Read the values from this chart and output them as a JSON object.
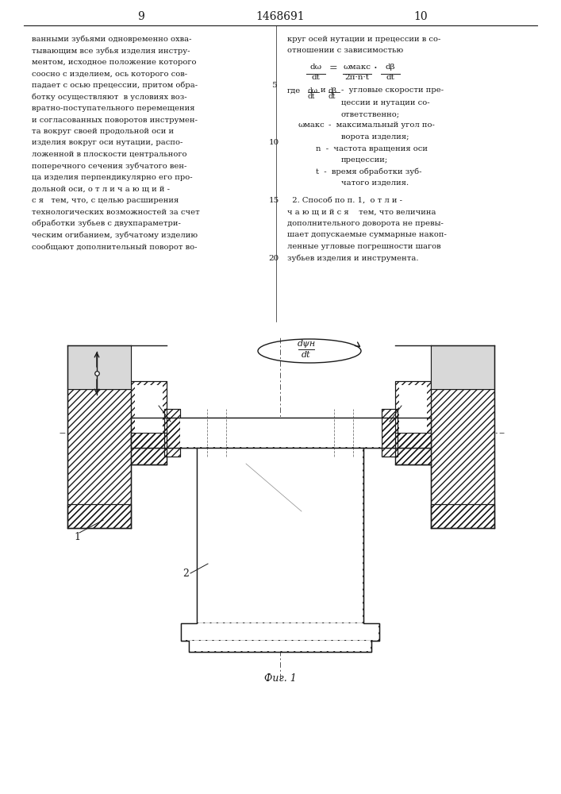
{
  "page_number_left": "9",
  "page_number_center": "1468691",
  "page_number_right": "10",
  "background_color": "#ffffff",
  "text_color": "#1a1a1a",
  "line_color": "#1a1a1a",
  "fig_caption": "Фиг. 1"
}
